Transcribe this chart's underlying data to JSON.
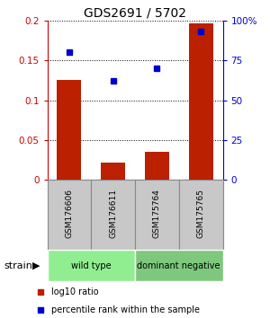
{
  "title": "GDS2691 / 5702",
  "samples": [
    "GSM176606",
    "GSM176611",
    "GSM175764",
    "GSM175765"
  ],
  "log10_ratio": [
    0.125,
    0.022,
    0.035,
    0.197
  ],
  "percentile_rank": [
    80,
    62,
    70,
    93
  ],
  "ylim_left": [
    0,
    0.2
  ],
  "ylim_right": [
    0,
    100
  ],
  "yticks_left": [
    0,
    0.05,
    0.1,
    0.15,
    0.2
  ],
  "yticks_right": [
    0,
    25,
    50,
    75,
    100
  ],
  "ytick_labels_left": [
    "0",
    "0.05",
    "0.1",
    "0.15",
    "0.2"
  ],
  "ytick_labels_right": [
    "0",
    "25",
    "50",
    "75",
    "100%"
  ],
  "groups": [
    {
      "label": "wild type",
      "indices": [
        0,
        1
      ],
      "color": "#90EE90"
    },
    {
      "label": "dominant negative",
      "indices": [
        2,
        3
      ],
      "color": "#7EC87E"
    }
  ],
  "bar_color": "#BB2000",
  "dot_color": "#0000CC",
  "bar_width": 0.55,
  "plot_bg_color": "#FFFFFF",
  "sample_label_color": "#000000",
  "title_color": "#000000",
  "legend_bar_label": "log10 ratio",
  "legend_dot_label": "percentile rank within the sample",
  "strain_label": "strain",
  "left_axis_color": "#CC0000",
  "right_axis_color": "#0000CC",
  "sample_box_color": "#C8C8C8",
  "sample_box_edge": "#888888"
}
